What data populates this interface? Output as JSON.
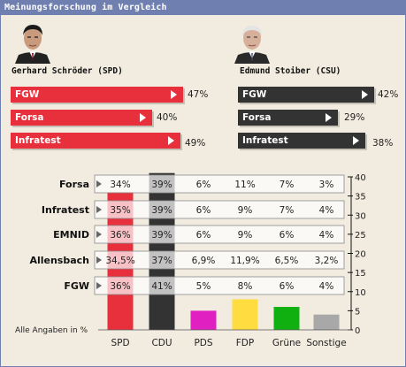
{
  "window": {
    "title": "Meinungsforschung im Vergleich"
  },
  "candidates": [
    {
      "name": "Gerhard Schröder (SPD)",
      "color": "#e8303c",
      "polls": [
        {
          "institute": "FGW",
          "value": "47%"
        },
        {
          "institute": "Forsa",
          "value": "40%"
        },
        {
          "institute": "Infratest",
          "value": "49%"
        }
      ]
    },
    {
      "name": "Edmund Stoiber (CSU)",
      "color": "#333333",
      "polls": [
        {
          "institute": "FGW",
          "value": "42%"
        },
        {
          "institute": "Forsa",
          "value": "29%"
        },
        {
          "institute": "Infratest",
          "value": "38%"
        }
      ]
    }
  ],
  "chart_data": {
    "type": "bar",
    "categories": [
      "SPD",
      "CDU",
      "PDS",
      "FDP",
      "Grüne",
      "Sonstige"
    ],
    "values": [
      36,
      41,
      5,
      8,
      6,
      4
    ],
    "bar_colors": [
      "#e8303c",
      "#333333",
      "#e020c0",
      "#ffdc40",
      "#10b010",
      "#a8a8a8"
    ],
    "ylim": [
      0,
      40
    ],
    "yticks": [
      0,
      5,
      10,
      15,
      20,
      25,
      30,
      35,
      40
    ],
    "note": "Alle Angaben in %",
    "table": {
      "rows": [
        {
          "institute": "Forsa",
          "values": [
            "34%",
            "39%",
            "6%",
            "11%",
            "7%",
            "3%"
          ]
        },
        {
          "institute": "Infratest",
          "values": [
            "35%",
            "39%",
            "6%",
            "9%",
            "7%",
            "4%"
          ]
        },
        {
          "institute": "EMNID",
          "values": [
            "36%",
            "39%",
            "6%",
            "9%",
            "6%",
            "4%"
          ]
        },
        {
          "institute": "Allensbach",
          "values": [
            "34,5%",
            "37%",
            "6,9%",
            "11,9%",
            "6,5%",
            "3,2%"
          ]
        },
        {
          "institute": "FGW",
          "values": [
            "36%",
            "41%",
            "5%",
            "8%",
            "6%",
            "4%"
          ]
        }
      ]
    }
  }
}
